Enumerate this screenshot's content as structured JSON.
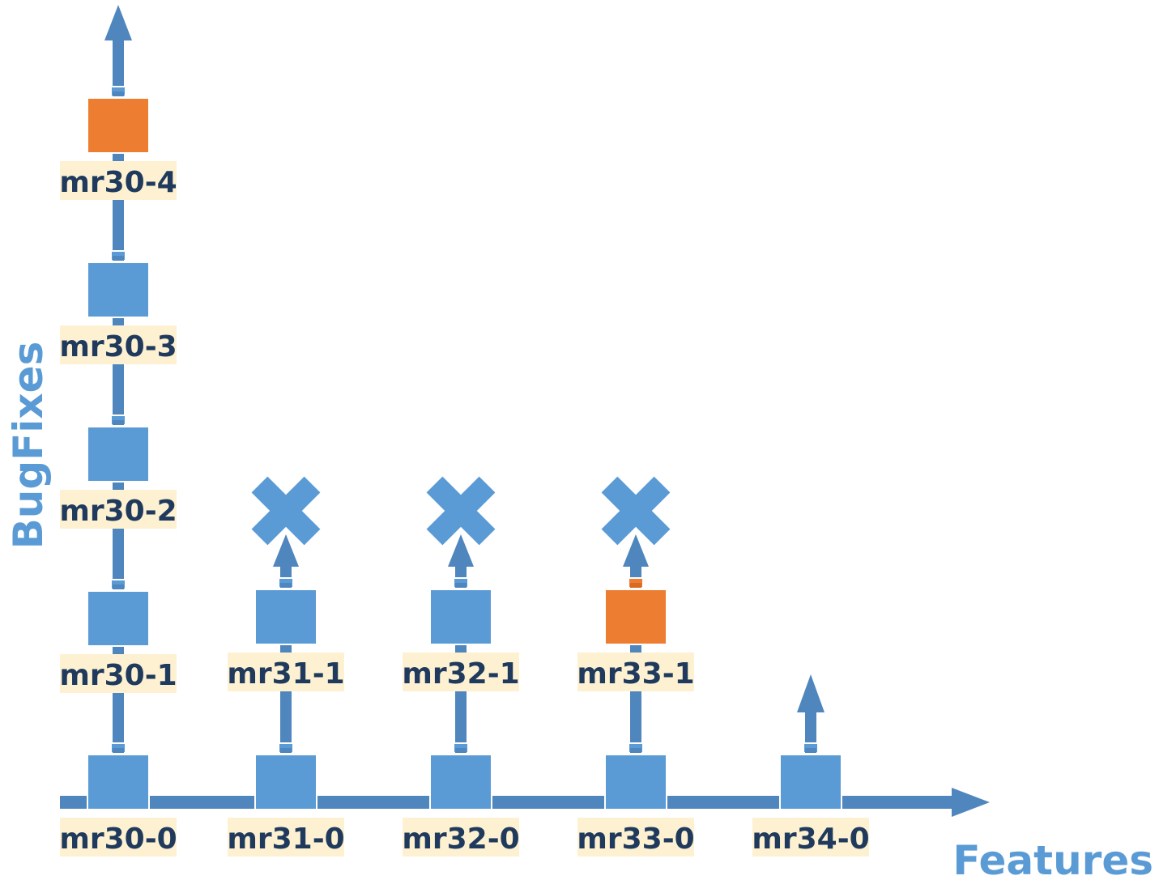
{
  "axes": {
    "x_title": "Features",
    "y_title": "BugFixes"
  },
  "colors": {
    "line": "#4f86bd",
    "box": "#5b9bd5",
    "box_highlight": "#ed7d31",
    "label_bg": "#fdf1d2",
    "label_text": "#1f3a5c",
    "axis_title": "#5b9bd5"
  },
  "nodes": [
    {
      "id": "n30-0",
      "label": "mr30-0",
      "color": "blue"
    },
    {
      "id": "n30-1",
      "label": "mr30-1",
      "color": "blue"
    },
    {
      "id": "n30-2",
      "label": "mr30-2",
      "color": "blue"
    },
    {
      "id": "n30-3",
      "label": "mr30-3",
      "color": "blue"
    },
    {
      "id": "n30-4",
      "label": "mr30-4",
      "color": "orange"
    },
    {
      "id": "n31-0",
      "label": "mr31-0",
      "color": "blue"
    },
    {
      "id": "n31-1",
      "label": "mr31-1",
      "color": "blue"
    },
    {
      "id": "n32-0",
      "label": "mr32-0",
      "color": "blue"
    },
    {
      "id": "n32-1",
      "label": "mr32-1",
      "color": "blue"
    },
    {
      "id": "n33-0",
      "label": "mr33-0",
      "color": "blue"
    },
    {
      "id": "n33-1",
      "label": "mr33-1",
      "color": "orange"
    },
    {
      "id": "n34-0",
      "label": "mr34-0",
      "color": "blue"
    }
  ],
  "branches": [
    {
      "id": "mr30",
      "end": "arrow"
    },
    {
      "id": "mr31",
      "end": "cross"
    },
    {
      "id": "mr32",
      "end": "cross"
    },
    {
      "id": "mr33",
      "end": "cross"
    },
    {
      "id": "mr34",
      "end": "arrow"
    }
  ]
}
